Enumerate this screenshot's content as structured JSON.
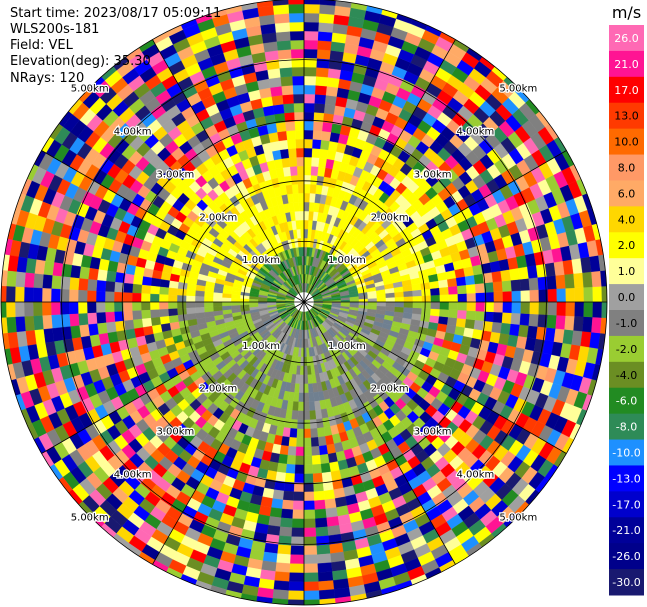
{
  "header": {
    "start_time": "Start time: 2023/08/17 05:09:11",
    "instrument": "WLS200s-181",
    "field": "Field: VEL",
    "elevation": "Elevation(deg): 35.30",
    "nrays": "NRays: 120"
  },
  "chart_data": {
    "type": "heatmap",
    "projection": "polar-ppi",
    "field": "VEL",
    "units": "m/s",
    "rays": 120,
    "range_rings_km": [
      1.0,
      2.0,
      3.0,
      4.0,
      5.0
    ],
    "range_ring_labels": [
      "1.00km",
      "2.00km",
      "3.00km",
      "4.00km",
      "5.00km"
    ],
    "colorbar": {
      "label": "m/s",
      "ticks": [
        "26.0",
        "21.0",
        "17.0",
        "13.0",
        "10.0",
        "8.0",
        "6.0",
        "4.0",
        "2.0",
        "1.0",
        "0.0",
        "-1.0",
        "-2.0",
        "-4.0",
        "-6.0",
        "-8.0",
        "-10.0",
        "-13.0",
        "-17.0",
        "-21.0",
        "-26.0",
        "-30.0"
      ],
      "colors": [
        "#ff69b4",
        "#ff1493",
        "#ff0000",
        "#ff3a00",
        "#ff6a00",
        "#ff9966",
        "#ffaa66",
        "#ffd700",
        "#ffff00",
        "#ffff99",
        "#a0a0a0",
        "#808080",
        "#9acd32",
        "#6b8e23",
        "#228b22",
        "#2e8b57",
        "#1e90ff",
        "#0000ff",
        "#0000cd",
        "#000099",
        "#00008b",
        "#191970"
      ]
    }
  }
}
